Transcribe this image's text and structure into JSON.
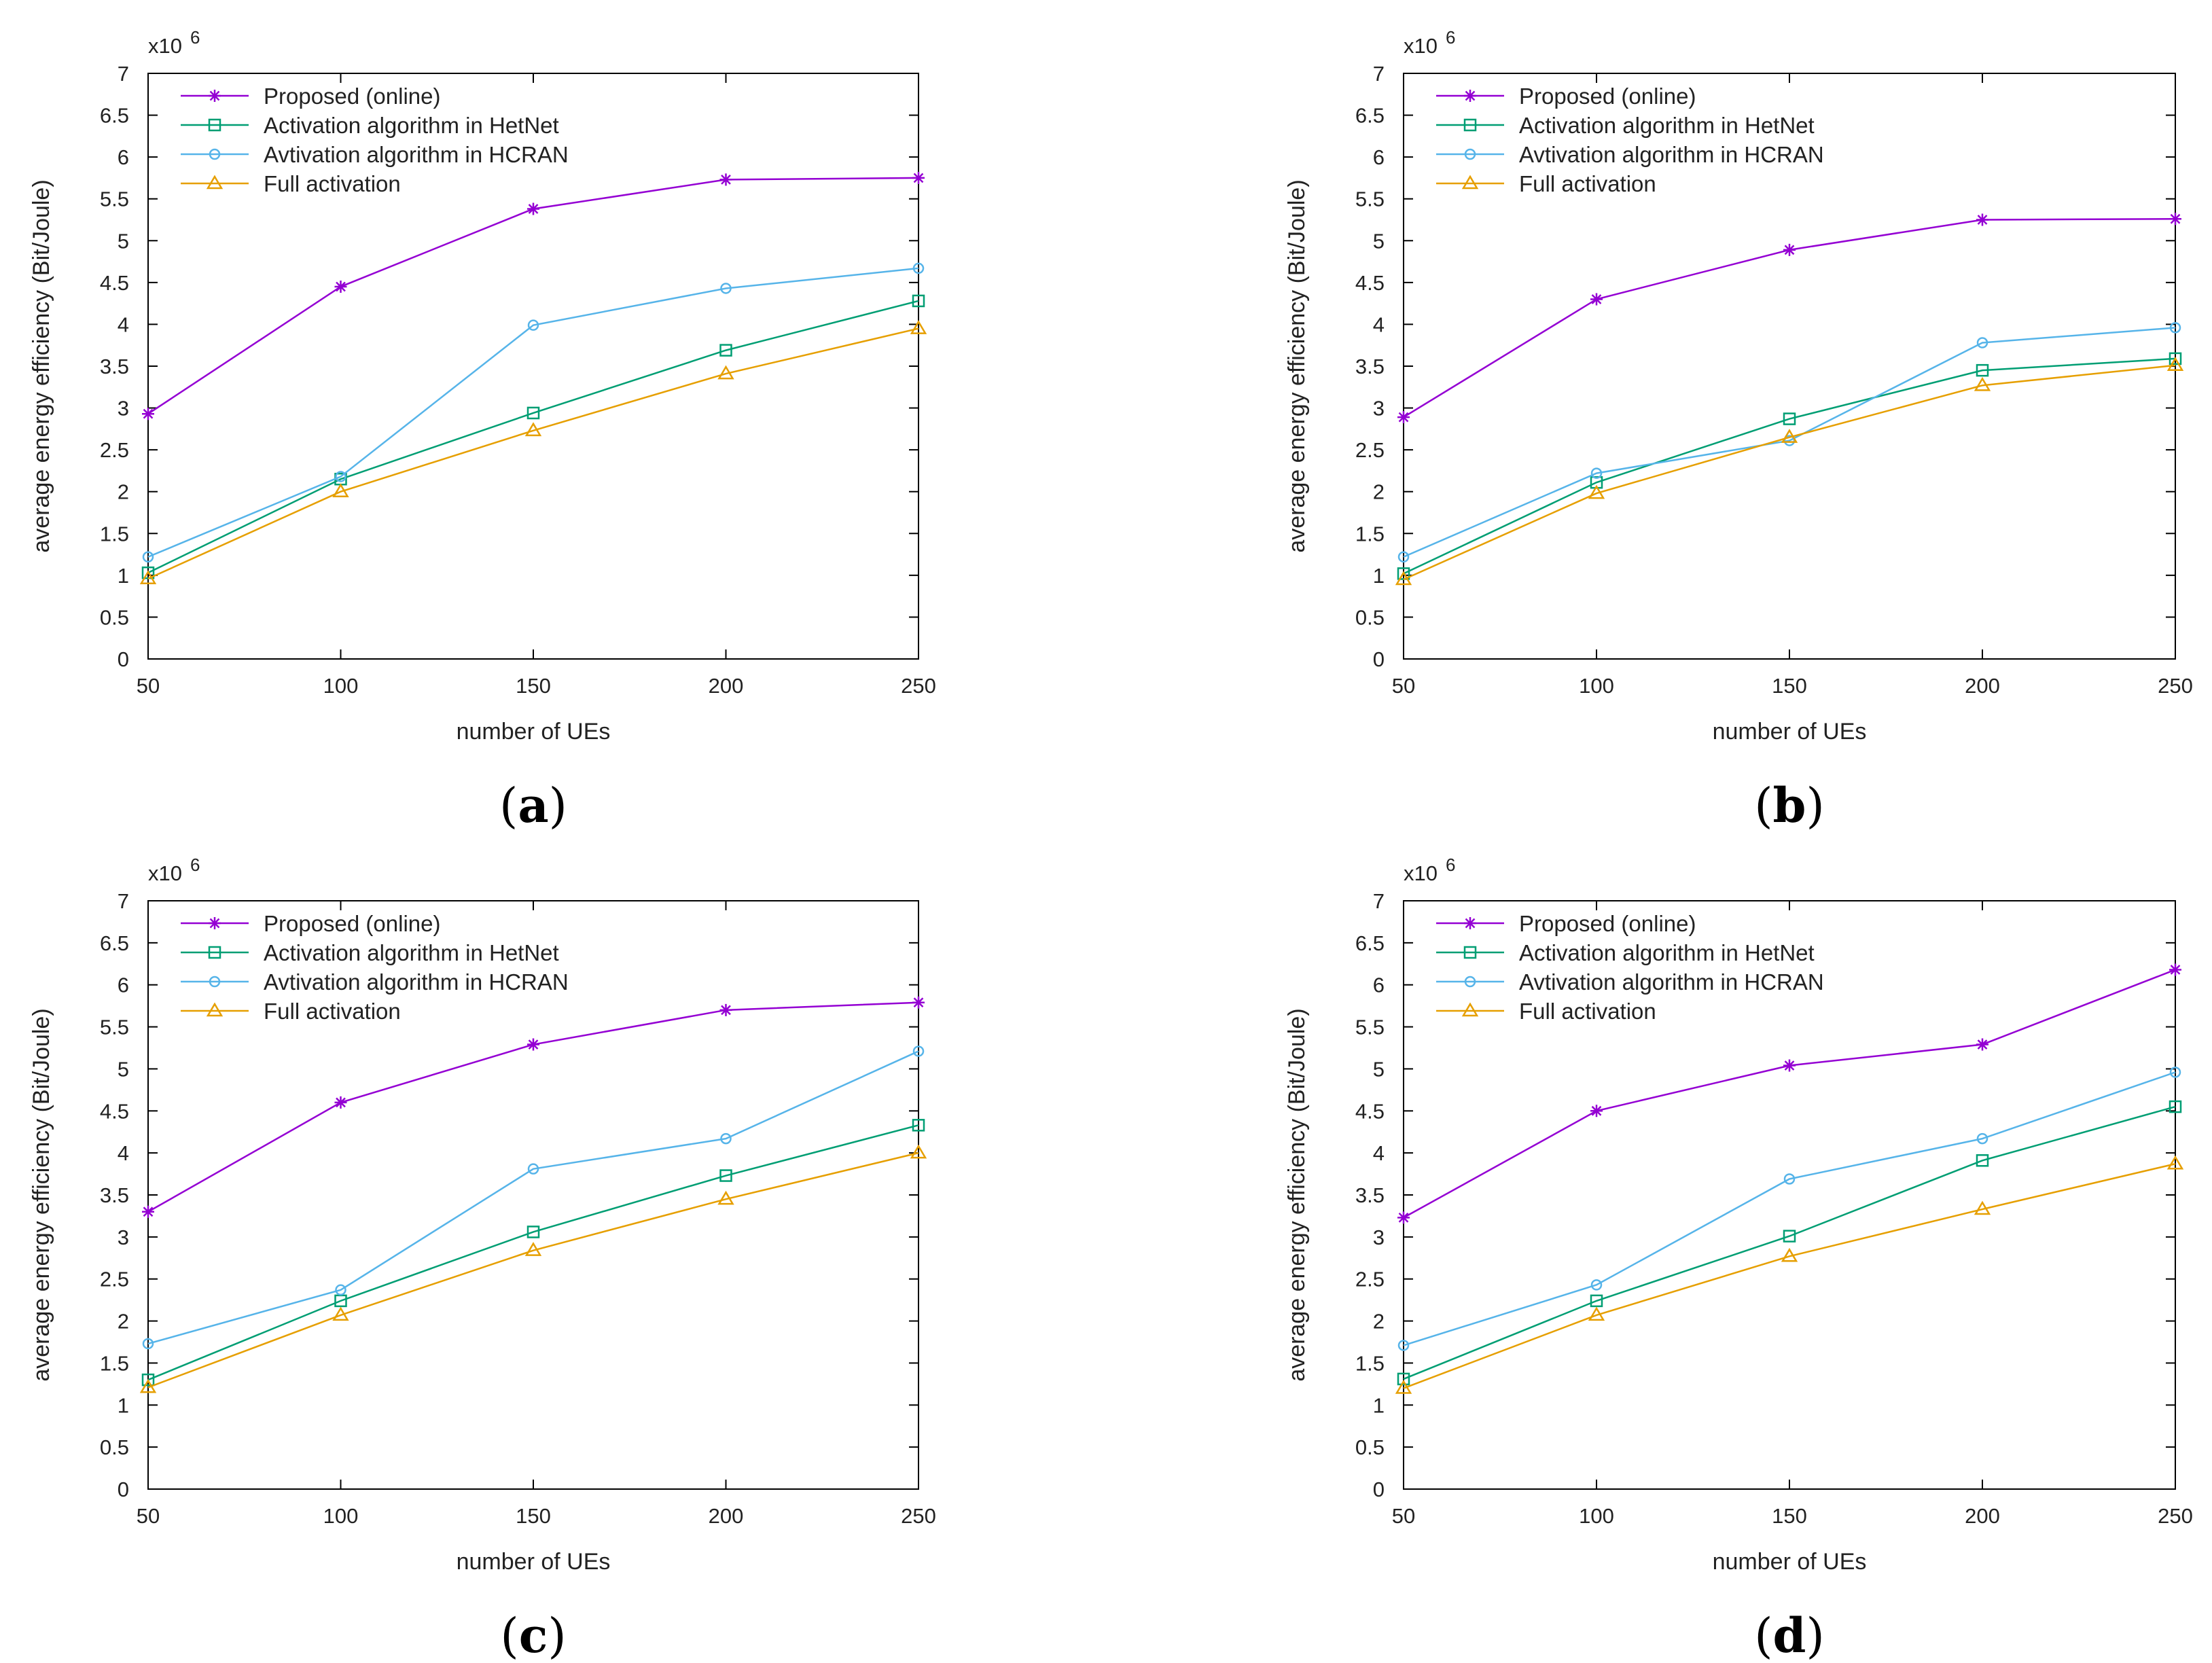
{
  "figure": {
    "chart_data": [
      {
        "panel": "a",
        "type": "line",
        "caption": "a",
        "xlabel": "number of UEs",
        "ylabel": "average energy efficiency (Bit/Joule)",
        "y_scale_label": "x10",
        "y_scale_exponent": "6",
        "x": [
          50,
          100,
          150,
          200,
          250
        ],
        "xlim": [
          50,
          250
        ],
        "ylim": [
          0,
          7
        ],
        "x_ticks": [
          "50",
          "100",
          "150",
          "200",
          "250"
        ],
        "y_ticks": [
          "0",
          "0.5",
          "1",
          "1.5",
          "2",
          "2.5",
          "3",
          "3.5",
          "4",
          "4.5",
          "5",
          "5.5",
          "6",
          "6.5",
          "7"
        ],
        "legend_position": "top-left",
        "grid": false,
        "series": [
          {
            "name": "Proposed (online)",
            "color": "#9400d3",
            "marker": "star",
            "values": [
              2.93,
              4.45,
              5.38,
              5.73,
              5.75
            ]
          },
          {
            "name": "Activation algorithm in HetNet",
            "color": "#009e73",
            "marker": "square",
            "values": [
              1.03,
              2.15,
              2.94,
              3.69,
              4.28
            ]
          },
          {
            "name": "Avtivation algorithm in HCRAN",
            "color": "#56b4e9",
            "marker": "circle",
            "values": [
              1.22,
              2.18,
              3.99,
              4.43,
              4.67
            ]
          },
          {
            "name": "Full activation",
            "color": "#e69f00",
            "marker": "triangle",
            "values": [
              0.96,
              2.0,
              2.73,
              3.41,
              3.95
            ]
          }
        ]
      },
      {
        "panel": "b",
        "type": "line",
        "caption": "b",
        "xlabel": "number of UEs",
        "ylabel": "average energy efficiency (Bit/Joule)",
        "y_scale_label": "x10",
        "y_scale_exponent": "6",
        "x": [
          50,
          100,
          150,
          200,
          250
        ],
        "xlim": [
          50,
          250
        ],
        "ylim": [
          0,
          7
        ],
        "x_ticks": [
          "50",
          "100",
          "150",
          "200",
          "250"
        ],
        "y_ticks": [
          "0",
          "0.5",
          "1",
          "1.5",
          "2",
          "2.5",
          "3",
          "3.5",
          "4",
          "4.5",
          "5",
          "5.5",
          "6",
          "6.5",
          "7"
        ],
        "legend_position": "top-left",
        "grid": false,
        "series": [
          {
            "name": "Proposed (online)",
            "color": "#9400d3",
            "marker": "star",
            "values": [
              2.89,
              4.3,
              4.89,
              5.25,
              5.26
            ]
          },
          {
            "name": "Activation algorithm in HetNet",
            "color": "#009e73",
            "marker": "square",
            "values": [
              1.02,
              2.11,
              2.87,
              3.45,
              3.59
            ]
          },
          {
            "name": "Avtivation algorithm in HCRAN",
            "color": "#56b4e9",
            "marker": "circle",
            "values": [
              1.22,
              2.22,
              2.61,
              3.78,
              3.96
            ]
          },
          {
            "name": "Full activation",
            "color": "#e69f00",
            "marker": "triangle",
            "values": [
              0.95,
              1.98,
              2.65,
              3.27,
              3.51
            ]
          }
        ]
      },
      {
        "panel": "c",
        "type": "line",
        "caption": "c",
        "xlabel": "number of UEs",
        "ylabel": "average energy efficiency (Bit/Joule)",
        "y_scale_label": "x10",
        "y_scale_exponent": "6",
        "x": [
          50,
          100,
          150,
          200,
          250
        ],
        "xlim": [
          50,
          250
        ],
        "ylim": [
          0,
          7
        ],
        "x_ticks": [
          "50",
          "100",
          "150",
          "200",
          "250"
        ],
        "y_ticks": [
          "0",
          "0.5",
          "1",
          "1.5",
          "2",
          "2.5",
          "3",
          "3.5",
          "4",
          "4.5",
          "5",
          "5.5",
          "6",
          "6.5",
          "7"
        ],
        "legend_position": "top-left",
        "grid": false,
        "series": [
          {
            "name": "Proposed (online)",
            "color": "#9400d3",
            "marker": "star",
            "values": [
              3.3,
              4.6,
              5.29,
              5.7,
              5.79
            ]
          },
          {
            "name": "Activation algorithm in HetNet",
            "color": "#009e73",
            "marker": "square",
            "values": [
              1.3,
              2.24,
              3.06,
              3.73,
              4.33
            ]
          },
          {
            "name": "Avtivation algorithm in HCRAN",
            "color": "#56b4e9",
            "marker": "circle",
            "values": [
              1.73,
              2.37,
              3.81,
              4.17,
              5.21
            ]
          },
          {
            "name": "Full activation",
            "color": "#e69f00",
            "marker": "triangle",
            "values": [
              1.21,
              2.07,
              2.84,
              3.45,
              4.0
            ]
          }
        ]
      },
      {
        "panel": "d",
        "type": "line",
        "caption": "d",
        "xlabel": "number of UEs",
        "ylabel": "average energy efficiency (Bit/Joule)",
        "y_scale_label": "x10",
        "y_scale_exponent": "6",
        "x": [
          50,
          100,
          150,
          200,
          250
        ],
        "xlim": [
          50,
          250
        ],
        "ylim": [
          0,
          7
        ],
        "x_ticks": [
          "50",
          "100",
          "150",
          "200",
          "250"
        ],
        "y_ticks": [
          "0",
          "0.5",
          "1",
          "1.5",
          "2",
          "2.5",
          "3",
          "3.5",
          "4",
          "4.5",
          "5",
          "5.5",
          "6",
          "6.5",
          "7"
        ],
        "legend_position": "top-left",
        "grid": false,
        "series": [
          {
            "name": "Proposed (online)",
            "color": "#9400d3",
            "marker": "star",
            "values": [
              3.23,
              4.5,
              5.04,
              5.29,
              6.18
            ]
          },
          {
            "name": "Activation algorithm in HetNet",
            "color": "#009e73",
            "marker": "square",
            "values": [
              1.31,
              2.24,
              3.01,
              3.91,
              4.55
            ]
          },
          {
            "name": "Avtivation algorithm in HCRAN",
            "color": "#56b4e9",
            "marker": "circle",
            "values": [
              1.71,
              2.43,
              3.69,
              4.17,
              4.96
            ]
          },
          {
            "name": "Full activation",
            "color": "#e69f00",
            "marker": "triangle",
            "values": [
              1.2,
              2.07,
              2.77,
              3.33,
              3.87
            ]
          }
        ]
      }
    ]
  }
}
